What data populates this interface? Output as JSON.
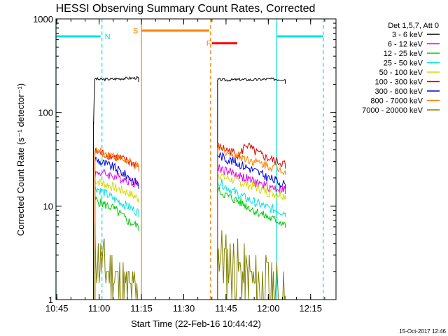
{
  "chart_data": {
    "type": "line",
    "title": "HESSI Observing Summary Count Rates, Corrected",
    "xlabel": "Start Time (22-Feb-16 10:44:42)",
    "ylabel": "Corrected Count Rate (s⁻¹ detector⁻¹)",
    "y_scale": "log",
    "ylim": [
      1,
      1000
    ],
    "xlim": [
      "10:44:42",
      "12:24:00"
    ],
    "x_ticks": [
      "10:45",
      "11:00",
      "11:15",
      "11:30",
      "11:45",
      "12:00",
      "12:15"
    ],
    "y_ticks": [
      "1",
      "10",
      "100",
      "1000"
    ],
    "grid": false,
    "legend_title": "Det 1,5,7, Att 0",
    "legend_position": "right",
    "series": [
      {
        "name": "3 - 6 keV",
        "color": "#000000",
        "segments": [
          {
            "x": [
              "10:58:00",
              "10:58:30",
              "11:00:00",
              "11:05:00",
              "11:10:00",
              "11:14:00"
            ],
            "y": [
              80,
              230,
              225,
              228,
              232,
              235
            ]
          },
          {
            "x": [
              "11:42:00",
              "11:45:00",
              "11:50:00",
              "11:55:00",
              "12:00:00",
              "12:06:00"
            ],
            "y": [
              225,
              222,
              225,
              223,
              228,
              225
            ]
          }
        ]
      },
      {
        "name": "6 - 12 keV",
        "color": "#e000e0",
        "segments": [
          {
            "x": [
              "10:58:30",
              "11:00:00",
              "11:05:00",
              "11:10:00",
              "11:14:00"
            ],
            "y": [
              22,
              23,
              21,
              19,
              17
            ]
          },
          {
            "x": [
              "11:42:00",
              "11:45:00",
              "11:50:00",
              "11:55:00",
              "12:00:00",
              "12:06:00"
            ],
            "y": [
              26,
              24,
              21,
              18,
              16,
              15
            ]
          }
        ]
      },
      {
        "name": "12 - 25 keV",
        "color": "#00c800",
        "segments": [
          {
            "x": [
              "10:58:30",
              "11:00:00",
              "11:05:00",
              "11:10:00",
              "11:14:00"
            ],
            "y": [
              12,
              11,
              9.5,
              7,
              6
            ]
          },
          {
            "x": [
              "11:42:00",
              "11:45:00",
              "11:50:00",
              "11:55:00",
              "12:00:00",
              "12:06:00"
            ],
            "y": [
              15,
              13,
              11,
              9,
              7.5,
              6.5
            ]
          }
        ]
      },
      {
        "name": "25 - 50 keV",
        "color": "#00e0e0",
        "segments": [
          {
            "x": [
              "10:58:30",
              "11:00:00",
              "11:05:00",
              "11:10:00",
              "11:14:00"
            ],
            "y": [
              16,
              15,
              12,
              10,
              8.5
            ]
          },
          {
            "x": [
              "11:42:00",
              "11:45:00",
              "11:50:00",
              "11:55:00",
              "12:00:00",
              "12:06:00"
            ],
            "y": [
              19,
              16,
              13,
              11,
              9.5,
              8.5
            ]
          }
        ]
      },
      {
        "name": "50 - 100 keV",
        "color": "#d8d800",
        "segments": [
          {
            "x": [
              "10:58:30",
              "11:00:00",
              "11:05:00",
              "11:10:00",
              "11:14:00"
            ],
            "y": [
              19,
              18,
              16,
              14,
              12
            ]
          },
          {
            "x": [
              "11:42:00",
              "11:45:00",
              "11:50:00",
              "11:55:00",
              "12:00:00",
              "12:06:00"
            ],
            "y": [
              22,
              20,
              18,
              16,
              14,
              13
            ]
          }
        ]
      },
      {
        "name": "100 - 300 keV",
        "color": "#e00000",
        "segments": [
          {
            "x": [
              "10:58:30",
              "11:00:00",
              "11:05:00",
              "11:10:00",
              "11:14:00"
            ],
            "y": [
              38,
              37,
              34,
              30,
              27
            ]
          },
          {
            "x": [
              "11:42:00",
              "11:45:00",
              "11:50:00",
              "11:52:00",
              "11:55:00",
              "12:00:00",
              "12:06:00"
            ],
            "y": [
              43,
              40,
              35,
              46,
              38,
              32,
              28
            ]
          }
        ]
      },
      {
        "name": "300 - 800 keV",
        "color": "#0000e0",
        "segments": [
          {
            "x": [
              "10:58:30",
              "11:00:00",
              "11:05:00",
              "11:10:00",
              "11:14:00"
            ],
            "y": [
              32,
              30,
              26,
              21,
              17
            ]
          },
          {
            "x": [
              "11:42:00",
              "11:45:00",
              "11:50:00",
              "11:55:00",
              "12:00:00",
              "12:06:00"
            ],
            "y": [
              36,
              32,
              28,
              24,
              20,
              17
            ]
          }
        ]
      },
      {
        "name": "800 - 7000 keV",
        "color": "#ff8000",
        "segments": [
          {
            "x": [
              "10:58:30",
              "11:00:00",
              "11:05:00",
              "11:10:00",
              "11:14:00"
            ],
            "y": [
              39,
              38,
              35,
              30,
              26
            ]
          },
          {
            "x": [
              "11:42:00",
              "11:45:00",
              "11:50:00",
              "11:55:00",
              "12:00:00",
              "12:06:00"
            ],
            "y": [
              42,
              38,
              34,
              30,
              27,
              24
            ]
          }
        ]
      },
      {
        "name": "7000 - 20000 keV",
        "color": "#808000",
        "segments": [
          {
            "x": [
              "10:58:30",
              "11:00:00",
              "11:03:00",
              "11:07:00",
              "11:10:00",
              "11:14:00"
            ],
            "y": [
              3.5,
              2.5,
              2,
              1.5,
              1.2,
              1
            ]
          },
          {
            "x": [
              "11:42:00",
              "11:45:00",
              "11:50:00",
              "11:55:00",
              "12:00:00",
              "12:06:00"
            ],
            "y": [
              3.5,
              2.5,
              2,
              1.5,
              1.3,
              1.1
            ]
          }
        ]
      }
    ],
    "annotations": [
      {
        "label": "N",
        "color": "#00e0e0",
        "style": "dashed",
        "x": "11:01:00",
        "y": 650,
        "bars": [
          [
            "10:44:42",
            "11:00:30"
          ]
        ]
      },
      {
        "label": "",
        "color": "#00e0e0",
        "style": "solid",
        "x": "12:03:00",
        "y": 650,
        "bars": [
          [
            "12:03:00",
            "12:19:30"
          ]
        ]
      },
      {
        "label": "",
        "color": "#00e0e0",
        "style": "dashed",
        "x": "12:19:30"
      },
      {
        "label": "",
        "color": "#00e0e0",
        "style": "solid",
        "x": "10:44:42"
      },
      {
        "label": "S",
        "color": "#ff8000",
        "style": "solid",
        "x": "11:15:00",
        "y": 750,
        "bars": [
          [
            "11:15:00",
            "11:39:00"
          ]
        ]
      },
      {
        "label": "F",
        "color": "#ff8000",
        "style": "dashed",
        "x": "11:39:30"
      },
      {
        "label": "",
        "color": "#ff0000",
        "style": "solid",
        "y": 550,
        "bars": [
          [
            "11:40:00",
            "11:49:00"
          ]
        ]
      }
    ]
  },
  "footer": {
    "timestamp": "15-Oct-2017 12:46"
  }
}
